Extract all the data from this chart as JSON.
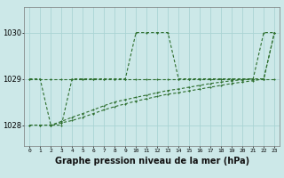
{
  "title": "Graphe pression niveau de la mer (hPa)",
  "title_fontsize": 7.0,
  "bg_color": "#cce8e8",
  "grid_color": "#aad4d4",
  "line_color": "#2d6e2d",
  "hours": [
    0,
    1,
    2,
    3,
    4,
    5,
    6,
    7,
    8,
    9,
    10,
    11,
    12,
    13,
    14,
    15,
    16,
    17,
    18,
    19,
    20,
    21,
    22,
    23
  ],
  "line1": [
    1029.0,
    1029.0,
    1028.0,
    1028.0,
    1029.0,
    1029.0,
    1029.0,
    1029.0,
    1029.0,
    1029.0,
    1030.0,
    1030.0,
    1030.0,
    1030.0,
    1029.0,
    1029.0,
    1029.0,
    1029.0,
    1029.0,
    1029.0,
    1029.0,
    1029.0,
    1030.0,
    1030.0
  ],
  "line2": [
    1029.0,
    1029.0,
    1029.0,
    1029.0,
    1029.0,
    1029.0,
    1029.0,
    1029.0,
    1029.0,
    1029.0,
    1029.0,
    1029.0,
    1029.0,
    1029.0,
    1029.0,
    1029.0,
    1029.0,
    1029.0,
    1029.0,
    1029.0,
    1029.0,
    1029.0,
    1029.0,
    1029.0
  ],
  "line3": [
    1028.0,
    1028.0,
    1028.0,
    1028.08,
    1028.17,
    1028.25,
    1028.33,
    1028.42,
    1028.5,
    1028.55,
    1028.6,
    1028.65,
    1028.7,
    1028.75,
    1028.78,
    1028.82,
    1028.86,
    1028.9,
    1028.93,
    1028.96,
    1028.98,
    1029.0,
    1029.0,
    1030.0
  ],
  "line4": [
    1028.0,
    1028.0,
    1028.0,
    1028.05,
    1028.1,
    1028.17,
    1028.25,
    1028.33,
    1028.4,
    1028.46,
    1028.52,
    1028.57,
    1028.62,
    1028.67,
    1028.7,
    1028.74,
    1028.78,
    1028.82,
    1028.86,
    1028.9,
    1028.93,
    1028.96,
    1029.0,
    1030.0
  ],
  "ylim": [
    1027.55,
    1030.55
  ],
  "yticks": [
    1028,
    1029,
    1030
  ],
  "xlim": [
    -0.5,
    23.5
  ]
}
